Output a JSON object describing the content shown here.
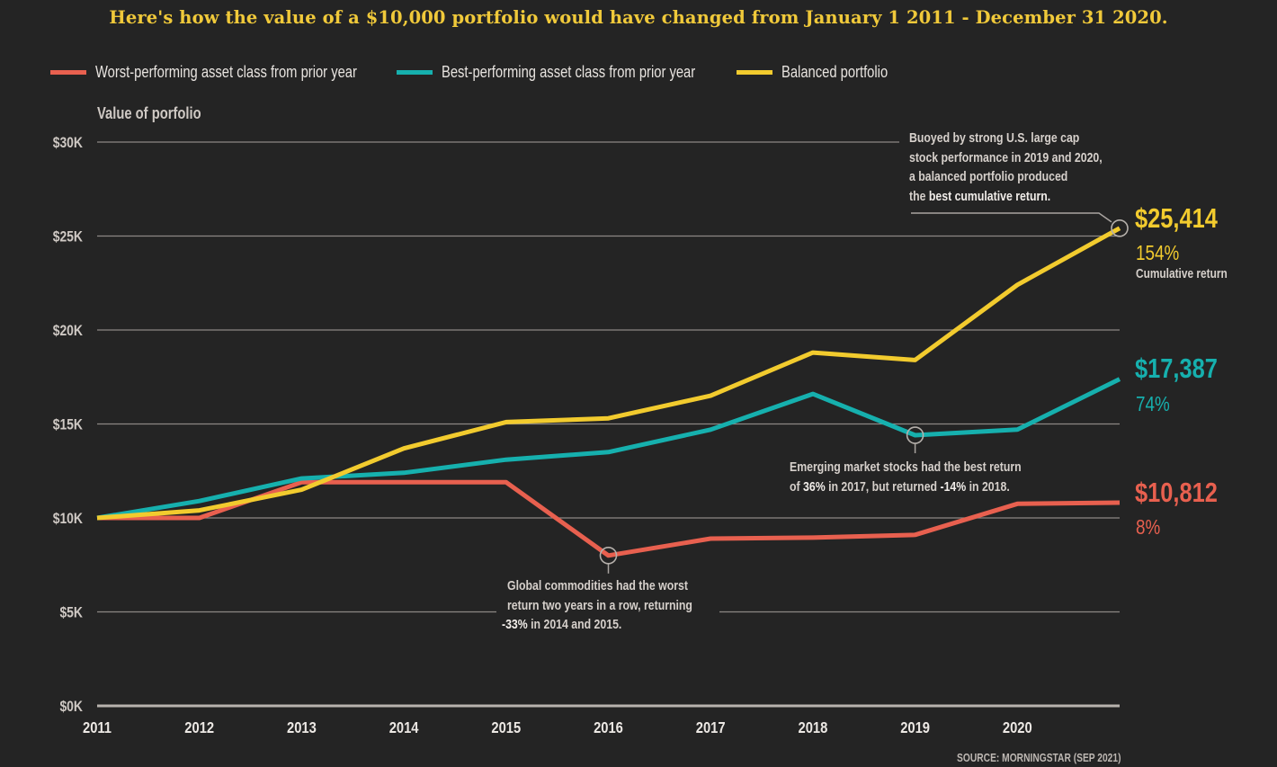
{
  "title": "Here's how the value of a $10,000 portfolio would have changed from January 1 2011 - December 31 2020.",
  "legend": [
    {
      "label": "Worst-performing asset class from prior year",
      "color": "#e8604f"
    },
    {
      "label": "Best-performing asset class from prior year",
      "color": "#16b0ae"
    },
    {
      "label": "Balanced portfolio",
      "color": "#f2cb2e"
    }
  ],
  "y_axis_title": "Value of porfolio",
  "callouts": {
    "balanced": {
      "lines": [
        "Buoyed by strong U.S. large cap",
        "stock performance in 2019 and 2020,",
        "a balanced portfolio produced"
      ],
      "last_prefix": "the ",
      "last_bold": "best cumulative return."
    },
    "emerging": {
      "line1": "Emerging market stocks had the best return",
      "pre": "of ",
      "bold1": "36%",
      "mid": " in 2017, but returned ",
      "bold2": "-14%",
      "post": " in 2018."
    },
    "commodities": {
      "line1": "Global commodities had the worst",
      "line2": "return two years in a row, returning",
      "bold": "-33%",
      "post": " in 2014 and 2015."
    }
  },
  "end_labels": {
    "balanced": {
      "value": "$25,414",
      "pct": "154%",
      "sub": "Cumulative return",
      "color": "#f2cb2e"
    },
    "best": {
      "value": "$17,387",
      "pct": "74%",
      "color": "#16b0ae"
    },
    "worst": {
      "value": "$10,812",
      "pct": "8%",
      "color": "#e8604f"
    }
  },
  "source": "SOURCE: MORNINGSTAR (SEP 2021)",
  "chart_data": {
    "type": "line",
    "title": "Here's how the value of a $10,000 portfolio would have changed from January 1 2011 - December 31 2020.",
    "xlabel": "",
    "ylabel": "Value of porfolio",
    "x": [
      2011,
      2012,
      2013,
      2014,
      2015,
      2016,
      2017,
      2018,
      2019,
      2020,
      2021
    ],
    "x_tick_labels": [
      "2011",
      "2012",
      "2013",
      "2014",
      "2015",
      "2016",
      "2017",
      "2018",
      "2019",
      "2020"
    ],
    "y_tick_values": [
      0,
      5000,
      10000,
      15000,
      20000,
      25000,
      30000
    ],
    "y_tick_labels": [
      "$0K",
      "$5K",
      "$10K",
      "$15K",
      "$20K",
      "$25K",
      "$30K"
    ],
    "ylim": [
      0,
      30000
    ],
    "xlim": [
      2011,
      2021
    ],
    "grid": true,
    "legend_position": "top-left",
    "series": [
      {
        "name": "Worst-performing asset class from prior year",
        "color": "#e8604f",
        "values": [
          10000,
          10000,
          11900,
          11900,
          11900,
          8000,
          8900,
          8950,
          9100,
          10750,
          10812
        ]
      },
      {
        "name": "Best-performing asset class from prior year",
        "color": "#16b0ae",
        "values": [
          10000,
          10900,
          12100,
          12400,
          13100,
          13500,
          14700,
          16600,
          14400,
          14700,
          17387
        ]
      },
      {
        "name": "Balanced portfolio",
        "color": "#f2cb2e",
        "values": [
          10000,
          10400,
          11500,
          13700,
          15100,
          15300,
          16500,
          18800,
          18400,
          22400,
          25414
        ]
      }
    ],
    "annotations": [
      {
        "series": "Balanced portfolio",
        "x": 2021,
        "text": "Buoyed by strong U.S. large cap stock performance in 2019 and 2020, a balanced portfolio produced the best cumulative return."
      },
      {
        "series": "Best-performing asset class from prior year",
        "x": 2019,
        "text": "Emerging market stocks had the best return of 36% in 2017, but returned -14% in 2018."
      },
      {
        "series": "Worst-performing asset class from prior year",
        "x": 2016,
        "text": "Global commodities had the worst return two years in a row, returning -33% in 2014 and 2015."
      }
    ]
  }
}
